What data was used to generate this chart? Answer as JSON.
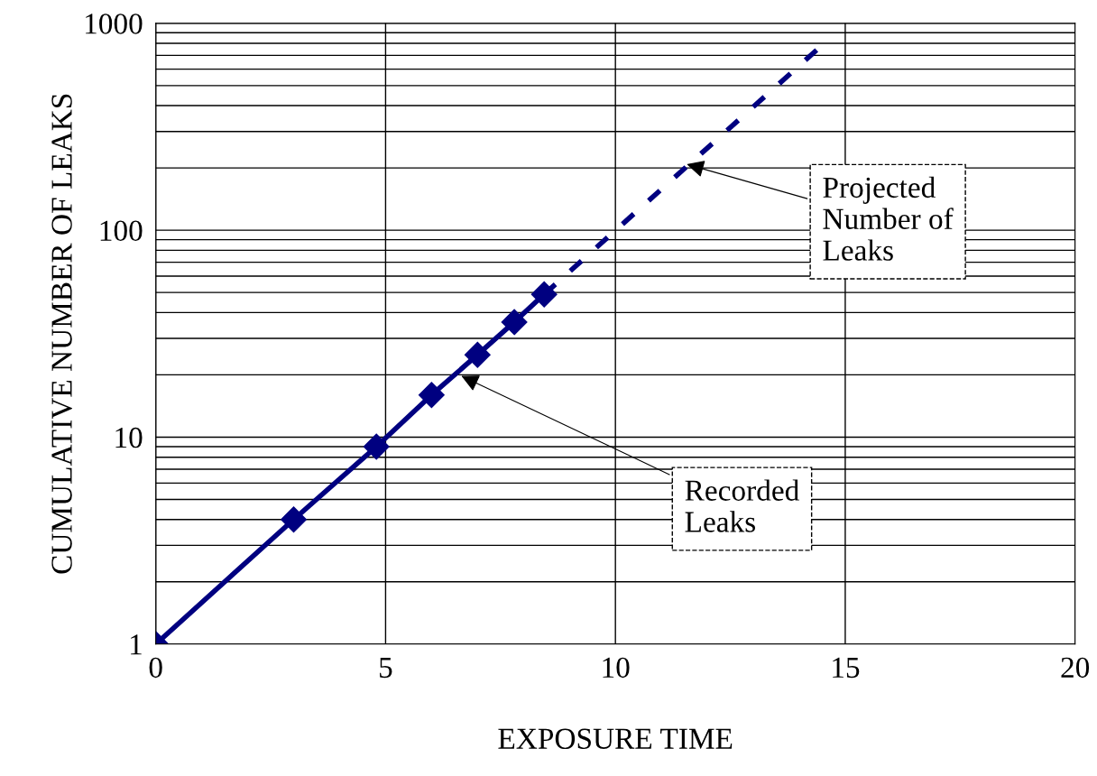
{
  "chart_data": {
    "type": "line",
    "xlabel": "EXPOSURE TIME",
    "ylabel": "CUMULATIVE NUMBER OF LEAKS",
    "log": "y",
    "grid": true,
    "xlim": [
      0,
      20
    ],
    "xticks": [
      0,
      5,
      10,
      15,
      20
    ],
    "ylim": [
      1,
      1000
    ],
    "yticks": [
      1,
      {
        "value": 2,
        "label": null
      },
      {
        "value": 3,
        "label": null
      },
      {
        "value": 4,
        "label": null
      },
      {
        "value": 5,
        "label": null
      },
      {
        "value": 6,
        "label": null
      },
      {
        "value": 7,
        "label": null
      },
      {
        "value": 8,
        "label": null
      },
      {
        "value": 9,
        "label": null
      },
      10,
      {
        "value": 20,
        "label": null
      },
      {
        "value": 30,
        "label": null
      },
      {
        "value": 40,
        "label": null
      },
      {
        "value": 50,
        "label": null
      },
      {
        "value": 60,
        "label": null
      },
      {
        "value": 70,
        "label": null
      },
      {
        "value": 80,
        "label": null
      },
      {
        "value": 90,
        "label": null
      },
      100,
      {
        "value": 200,
        "label": null
      },
      {
        "value": 300,
        "label": null
      },
      {
        "value": 400,
        "label": null
      },
      {
        "value": 500,
        "label": null
      },
      {
        "value": 600,
        "label": null
      },
      {
        "value": 700,
        "label": null
      },
      {
        "value": 800,
        "label": null
      },
      {
        "value": 900,
        "label": null
      },
      1000
    ],
    "series": [
      {
        "color": "#000080",
        "x": [
          0,
          3,
          4.8,
          6,
          7,
          7.8,
          8.45
        ],
        "values": [
          1,
          4,
          9,
          16,
          25,
          36,
          49
        ],
        "marker": "diamond",
        "line_style": "solid"
      },
      {
        "color": "#000080",
        "x": [
          8.45,
          14.4
        ],
        "values": [
          49,
          750
        ],
        "marker": "none",
        "line_style": "dashed"
      }
    ],
    "annotations": [
      {
        "text": "Projected\nNumber of\nLeaks",
        "x": 11.5,
        "y": 210
      },
      {
        "text": "Recorded\nLeaks",
        "x": 6.6,
        "y": 20
      }
    ]
  }
}
